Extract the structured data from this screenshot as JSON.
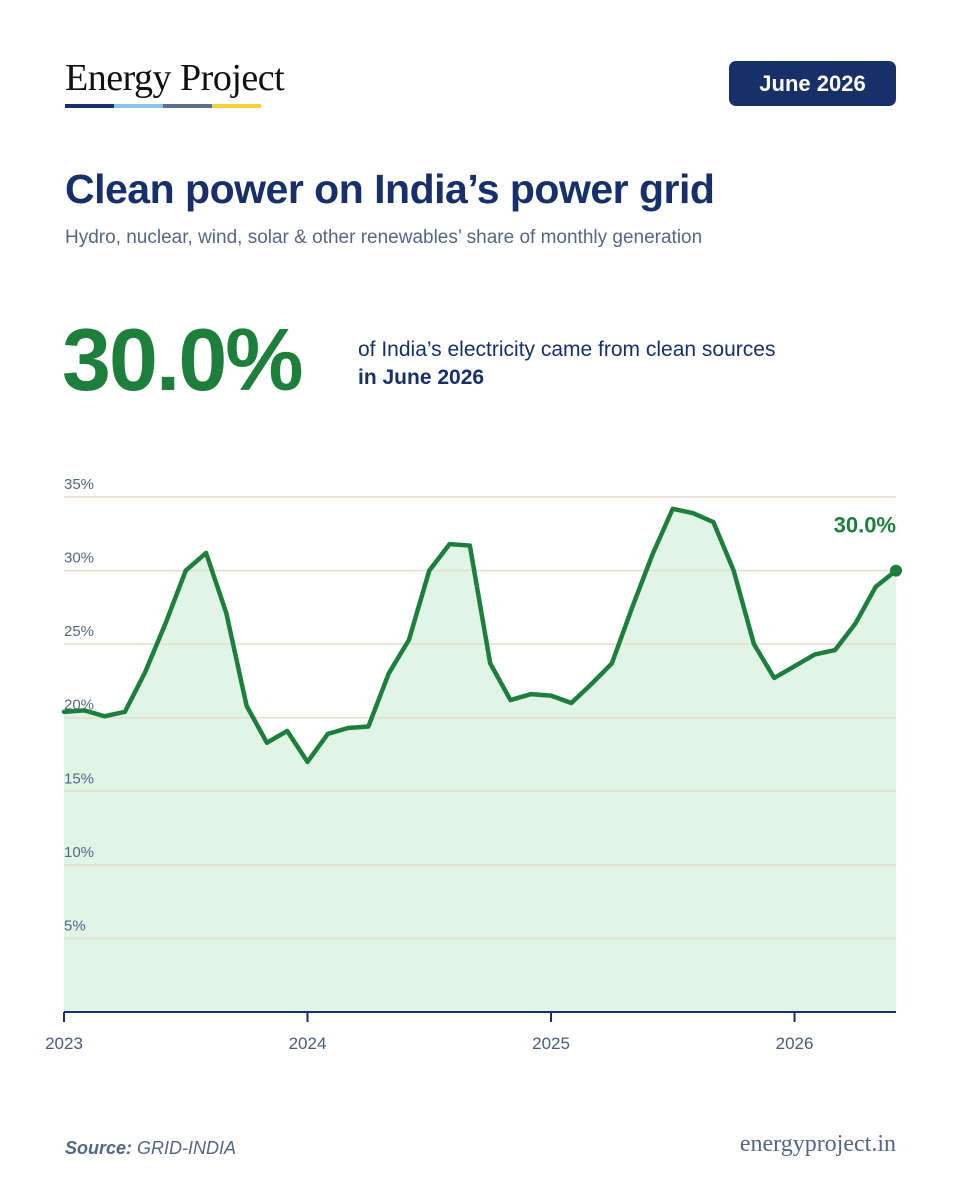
{
  "brand": {
    "name": "Energy Project",
    "bar_colors": [
      "#17306a",
      "#8cc3ea",
      "#5b6e91",
      "#f4d03f"
    ],
    "website": "energyproject.in"
  },
  "date_badge": "June 2026",
  "headline": {
    "title": "Clean power on India’s power grid",
    "subtitle": "Hydro, nuclear, wind, solar & other renewables’ share of monthly generation"
  },
  "key_stat": {
    "value": "30.0%",
    "caption_line1": "of India’s electricity came from clean sources",
    "caption_line2": "in June 2026"
  },
  "source": {
    "label": "Source:",
    "name": "GRID-INDIA"
  },
  "colors": {
    "navy": "#17306a",
    "green": "#1e7f3d",
    "area_fill": "#e0f5e5",
    "grid": "#e6dcd2",
    "muted": "#546786"
  },
  "chart_data": {
    "type": "area",
    "title": "Clean power on India’s power grid",
    "subtitle": "Hydro, nuclear, wind, solar & other renewables’ share of monthly generation",
    "xlabel": "",
    "ylabel": "",
    "x_tick_labels": [
      "2023",
      "2024",
      "2025",
      "2026"
    ],
    "y_tick_labels": [
      "5%",
      "10%",
      "15%",
      "20%",
      "25%",
      "30%",
      "35%"
    ],
    "y_ticks": [
      5,
      10,
      15,
      20,
      25,
      30,
      35
    ],
    "ylim": [
      0,
      35
    ],
    "grid": true,
    "last_point_label": "30.0%",
    "series": [
      {
        "x": [
          "2023-01",
          "2023-02",
          "2023-03",
          "2023-04",
          "2023-05",
          "2023-06",
          "2023-07",
          "2023-08",
          "2023-09",
          "2023-10",
          "2023-11",
          "2023-12",
          "2024-01",
          "2024-02",
          "2024-03",
          "2024-04",
          "2024-05",
          "2024-06",
          "2024-07",
          "2024-08",
          "2024-09",
          "2024-10",
          "2024-11",
          "2024-12",
          "2025-01",
          "2025-02",
          "2025-03",
          "2025-04",
          "2025-05",
          "2025-06",
          "2025-07",
          "2025-08",
          "2025-09",
          "2025-10",
          "2025-11",
          "2025-12",
          "2026-01",
          "2026-02",
          "2026-03",
          "2026-04",
          "2026-05",
          "2026-06"
        ],
        "values": [
          20.4,
          20.5,
          20.1,
          20.4,
          23.1,
          26.4,
          30.0,
          31.2,
          27.1,
          20.8,
          18.3,
          19.1,
          17.0,
          18.9,
          19.3,
          19.4,
          23.0,
          25.3,
          30.0,
          31.8,
          31.7,
          23.7,
          21.2,
          21.6,
          21.5,
          21.0,
          22.3,
          23.7,
          27.5,
          31.1,
          34.2,
          33.9,
          33.3,
          30.0,
          25.0,
          22.7,
          23.5,
          24.3,
          24.6,
          26.4,
          28.9,
          30.0
        ]
      }
    ]
  }
}
